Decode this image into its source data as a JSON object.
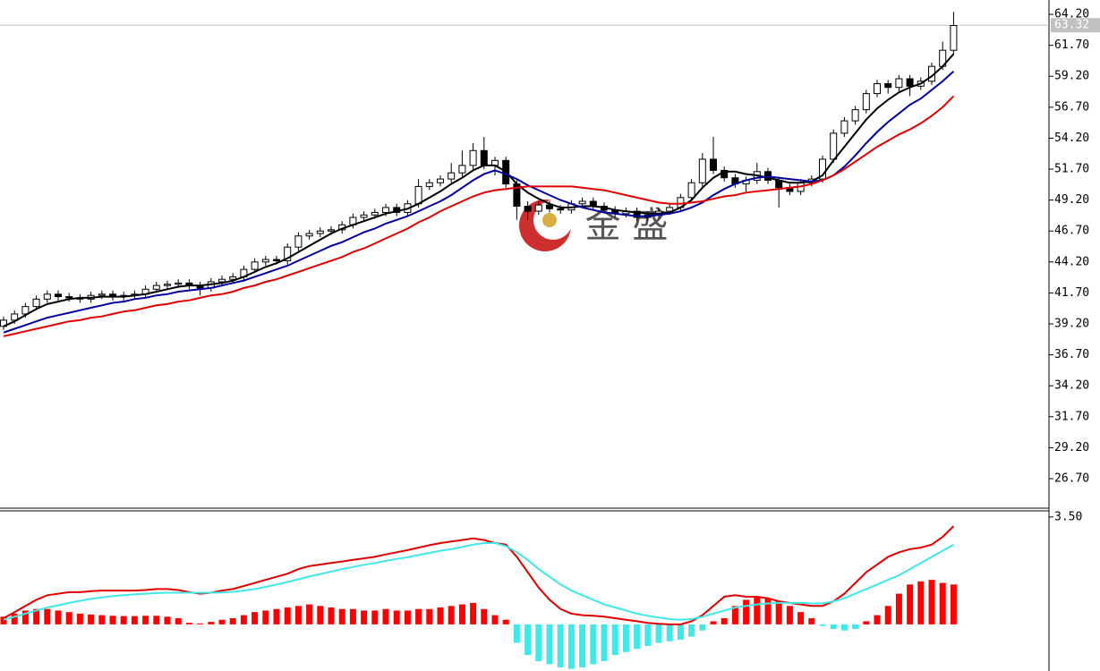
{
  "chart_data": [
    {
      "type": "candlestick",
      "ylim": [
        24.17,
        65.36
      ],
      "yticks": [
        {
          "value": 64.2,
          "label": "64.20"
        },
        {
          "value": 61.7,
          "label": "61.70"
        },
        {
          "value": 59.2,
          "label": "59.20"
        },
        {
          "value": 56.7,
          "label": "56.70"
        },
        {
          "value": 54.2,
          "label": "54.20"
        },
        {
          "value": 51.7,
          "label": "51.70"
        },
        {
          "value": 49.2,
          "label": "49.20"
        },
        {
          "value": 46.7,
          "label": "46.70"
        },
        {
          "value": 44.2,
          "label": "44.20"
        },
        {
          "value": 41.7,
          "label": "41.70"
        },
        {
          "value": 39.2,
          "label": "39.20"
        },
        {
          "value": 36.7,
          "label": "36.70"
        },
        {
          "value": 34.2,
          "label": "34.20"
        },
        {
          "value": 31.7,
          "label": "31.70"
        },
        {
          "value": 29.2,
          "label": "29.20"
        },
        {
          "value": 26.7,
          "label": "26.70"
        }
      ],
      "last_price": 63.32,
      "watermark": "金 盛",
      "up_color": "#ffffff",
      "down_color": "#000000",
      "candles": [
        [
          39.0,
          39.8,
          38.7,
          39.5
        ],
        [
          39.5,
          40.3,
          39.2,
          40.0
        ],
        [
          40.0,
          40.9,
          39.7,
          40.6
        ],
        [
          40.6,
          41.5,
          40.3,
          41.2
        ],
        [
          41.2,
          41.9,
          40.9,
          41.6
        ],
        [
          41.6,
          41.9,
          41.1,
          41.4
        ],
        [
          41.4,
          41.7,
          41.0,
          41.3
        ],
        [
          41.3,
          41.6,
          40.9,
          41.2
        ],
        [
          41.2,
          41.8,
          40.9,
          41.5
        ],
        [
          41.5,
          41.9,
          41.2,
          41.6
        ],
        [
          41.6,
          41.9,
          41.1,
          41.4
        ],
        [
          41.4,
          41.8,
          41.1,
          41.5
        ],
        [
          41.5,
          41.9,
          41.2,
          41.6
        ],
        [
          41.6,
          42.3,
          41.3,
          42.0
        ],
        [
          42.0,
          42.6,
          41.7,
          42.3
        ],
        [
          42.3,
          42.7,
          42.0,
          42.4
        ],
        [
          42.4,
          42.8,
          42.1,
          42.5
        ],
        [
          42.5,
          42.8,
          42.0,
          42.3
        ],
        [
          42.3,
          42.6,
          41.5,
          42.1
        ],
        [
          42.1,
          42.9,
          41.8,
          42.6
        ],
        [
          42.6,
          43.1,
          42.3,
          42.8
        ],
        [
          42.8,
          43.3,
          42.5,
          43.0
        ],
        [
          43.0,
          43.9,
          42.7,
          43.6
        ],
        [
          43.6,
          44.5,
          43.3,
          44.2
        ],
        [
          44.2,
          44.7,
          43.9,
          44.4
        ],
        [
          44.4,
          44.7,
          44.0,
          44.3
        ],
        [
          44.3,
          45.7,
          44.0,
          45.4
        ],
        [
          45.4,
          46.6,
          45.1,
          46.3
        ],
        [
          46.3,
          46.8,
          46.0,
          46.5
        ],
        [
          46.5,
          47.0,
          46.2,
          46.7
        ],
        [
          46.7,
          47.1,
          46.4,
          46.8
        ],
        [
          46.8,
          47.5,
          46.5,
          47.2
        ],
        [
          47.2,
          48.1,
          46.9,
          47.8
        ],
        [
          47.8,
          48.3,
          47.5,
          48.0
        ],
        [
          48.0,
          48.5,
          47.7,
          48.2
        ],
        [
          48.2,
          48.9,
          47.9,
          48.6
        ],
        [
          48.6,
          48.9,
          47.9,
          48.2
        ],
        [
          48.2,
          49.2,
          47.9,
          48.9
        ],
        [
          48.9,
          50.9,
          48.6,
          50.3
        ],
        [
          50.3,
          50.9,
          50.0,
          50.6
        ],
        [
          50.6,
          51.2,
          50.3,
          50.9
        ],
        [
          50.9,
          52.2,
          50.6,
          51.4
        ],
        [
          51.4,
          53.2,
          51.1,
          52.0
        ],
        [
          52.0,
          53.8,
          51.7,
          53.2
        ],
        [
          53.2,
          54.3,
          51.7,
          52.0
        ],
        [
          52.0,
          52.7,
          51.2,
          52.4
        ],
        [
          52.4,
          52.7,
          50.2,
          50.5
        ],
        [
          50.5,
          50.8,
          47.6,
          48.7
        ],
        [
          48.7,
          49.1,
          47.6,
          48.3
        ],
        [
          48.3,
          49.1,
          48.0,
          48.8
        ],
        [
          48.8,
          49.1,
          48.2,
          48.5
        ],
        [
          48.5,
          48.8,
          48.1,
          48.4
        ],
        [
          48.4,
          49.2,
          48.1,
          48.9
        ],
        [
          48.9,
          49.4,
          48.6,
          49.1
        ],
        [
          49.1,
          49.4,
          48.4,
          48.7
        ],
        [
          48.7,
          49.0,
          48.1,
          48.4
        ],
        [
          48.4,
          48.7,
          47.8,
          48.1
        ],
        [
          48.1,
          48.6,
          47.8,
          48.3
        ],
        [
          48.3,
          48.6,
          47.5,
          47.8
        ],
        [
          47.8,
          48.3,
          47.5,
          48.0
        ],
        [
          48.0,
          48.6,
          47.7,
          48.3
        ],
        [
          48.3,
          48.9,
          48.0,
          48.6
        ],
        [
          48.6,
          49.7,
          48.3,
          49.4
        ],
        [
          49.4,
          50.9,
          49.1,
          50.6
        ],
        [
          50.6,
          53.0,
          50.3,
          52.5
        ],
        [
          52.5,
          54.3,
          51.3,
          51.6
        ],
        [
          51.6,
          51.9,
          50.7,
          51.0
        ],
        [
          51.0,
          51.3,
          50.2,
          50.5
        ],
        [
          50.5,
          51.1,
          49.8,
          50.8
        ],
        [
          50.8,
          52.2,
          50.5,
          51.5
        ],
        [
          51.5,
          51.8,
          50.5,
          50.8
        ],
        [
          50.8,
          51.1,
          48.6,
          50.2
        ],
        [
          50.2,
          50.5,
          49.6,
          49.9
        ],
        [
          49.9,
          50.9,
          49.6,
          50.6
        ],
        [
          50.6,
          51.2,
          50.3,
          50.9
        ],
        [
          50.9,
          52.8,
          50.6,
          52.5
        ],
        [
          52.5,
          54.9,
          52.2,
          54.6
        ],
        [
          54.6,
          55.9,
          54.3,
          55.6
        ],
        [
          55.6,
          56.8,
          55.3,
          56.5
        ],
        [
          56.5,
          58.1,
          56.2,
          57.8
        ],
        [
          57.8,
          58.9,
          57.5,
          58.6
        ],
        [
          58.6,
          58.9,
          57.8,
          58.3
        ],
        [
          58.3,
          59.3,
          58.0,
          59.0
        ],
        [
          59.0,
          59.3,
          57.6,
          58.4
        ],
        [
          58.4,
          59.1,
          58.1,
          58.8
        ],
        [
          58.8,
          60.3,
          58.5,
          60.0
        ],
        [
          60.0,
          62.0,
          59.7,
          61.3
        ],
        [
          61.3,
          64.4,
          61.0,
          63.3
        ]
      ],
      "series": [
        {
          "color": "#000000",
          "values": [
            39.0,
            39.4,
            39.9,
            40.4,
            40.8,
            41.0,
            41.2,
            41.3,
            41.3,
            41.4,
            41.4,
            41.4,
            41.5,
            41.6,
            41.8,
            42.0,
            42.2,
            42.3,
            42.3,
            42.4,
            42.5,
            42.7,
            43.0,
            43.4,
            43.8,
            44.1,
            44.5,
            45.0,
            45.5,
            46.0,
            46.5,
            46.9,
            47.2,
            47.5,
            47.8,
            48.1,
            48.3,
            48.5,
            48.9,
            49.4,
            49.9,
            50.5,
            51.0,
            51.6,
            52.0,
            52.0,
            51.5,
            50.5,
            49.8,
            49.3,
            48.9,
            48.6,
            48.6,
            48.7,
            48.7,
            48.6,
            48.4,
            48.3,
            48.2,
            48.1,
            48.1,
            48.2,
            48.6,
            49.2,
            50.2,
            51.0,
            51.5,
            51.5,
            51.3,
            51.2,
            51.0,
            50.8,
            50.6,
            50.6,
            50.7,
            51.2,
            52.4,
            53.5,
            54.6,
            55.7,
            56.6,
            57.3,
            57.9,
            58.3,
            58.6,
            59.2,
            60.0,
            61.0
          ]
        },
        {
          "color": "#0000a0",
          "values": [
            38.5,
            38.8,
            39.1,
            39.4,
            39.7,
            39.9,
            40.1,
            40.3,
            40.5,
            40.7,
            40.9,
            41.0,
            41.2,
            41.3,
            41.5,
            41.6,
            41.8,
            41.9,
            42.0,
            42.1,
            42.3,
            42.5,
            42.7,
            43.0,
            43.3,
            43.6,
            43.9,
            44.3,
            44.7,
            45.1,
            45.5,
            45.8,
            46.2,
            46.6,
            46.9,
            47.3,
            47.6,
            47.9,
            48.3,
            48.7,
            49.1,
            49.6,
            50.2,
            50.8,
            51.3,
            51.6,
            51.3,
            50.9,
            50.4,
            50.0,
            49.6,
            49.2,
            48.9,
            48.6,
            48.4,
            48.2,
            48.1,
            48.0,
            47.9,
            47.9,
            48.0,
            48.1,
            48.3,
            48.6,
            49.0,
            49.6,
            50.1,
            50.5,
            50.8,
            51.0,
            51.1,
            51.0,
            50.9,
            50.8,
            50.7,
            50.8,
            51.2,
            51.9,
            52.8,
            53.8,
            54.7,
            55.5,
            56.2,
            56.9,
            57.4,
            58.1,
            58.8,
            59.6
          ]
        },
        {
          "color": "#e00000",
          "values": [
            38.2,
            38.4,
            38.6,
            38.8,
            39.0,
            39.2,
            39.4,
            39.5,
            39.7,
            39.8,
            40.0,
            40.2,
            40.3,
            40.5,
            40.7,
            40.8,
            41.0,
            41.1,
            41.3,
            41.5,
            41.6,
            41.8,
            42.1,
            42.3,
            42.6,
            42.8,
            43.1,
            43.4,
            43.7,
            44.0,
            44.3,
            44.6,
            45.0,
            45.3,
            45.7,
            46.1,
            46.5,
            46.9,
            47.4,
            47.8,
            48.3,
            48.7,
            49.1,
            49.5,
            49.8,
            50.0,
            50.1,
            50.2,
            50.3,
            50.3,
            50.3,
            50.3,
            50.3,
            50.2,
            50.1,
            50.0,
            49.8,
            49.6,
            49.4,
            49.2,
            49.0,
            48.9,
            48.9,
            49.0,
            49.1,
            49.3,
            49.5,
            49.6,
            49.8,
            49.9,
            50.0,
            50.1,
            50.2,
            50.3,
            50.5,
            50.8,
            51.2,
            51.7,
            52.3,
            52.9,
            53.5,
            54.0,
            54.5,
            54.9,
            55.4,
            56.0,
            56.7,
            57.6
          ]
        }
      ]
    },
    {
      "type": "macd",
      "ylim": [
        -1.52,
        3.67
      ],
      "yticks": [
        {
          "value": 3.5,
          "label": "3.50"
        }
      ],
      "histogram": {
        "color": "#ff0000",
        "negative_color": "#40e8e8",
        "values": [
          0.25,
          0.35,
          0.45,
          0.5,
          0.5,
          0.45,
          0.4,
          0.35,
          0.32,
          0.3,
          0.28,
          0.27,
          0.27,
          0.28,
          0.28,
          0.25,
          0.2,
          0.05,
          0.03,
          0.08,
          0.15,
          0.2,
          0.3,
          0.4,
          0.45,
          0.5,
          0.55,
          0.6,
          0.65,
          0.6,
          0.55,
          0.5,
          0.5,
          0.45,
          0.45,
          0.5,
          0.45,
          0.45,
          0.5,
          0.5,
          0.55,
          0.6,
          0.65,
          0.7,
          0.5,
          0.3,
          0.15,
          -0.6,
          -1.0,
          -1.2,
          -1.3,
          -1.4,
          -1.45,
          -1.4,
          -1.3,
          -1.2,
          -1.0,
          -0.9,
          -0.8,
          -0.7,
          -0.6,
          -0.55,
          -0.5,
          -0.4,
          -0.2,
          0.1,
          0.2,
          0.6,
          0.8,
          0.9,
          0.85,
          0.75,
          0.6,
          0.4,
          0.2,
          -0.05,
          -0.15,
          -0.2,
          -0.15,
          0.1,
          0.3,
          0.6,
          1.0,
          1.3,
          1.4,
          1.45,
          1.35,
          1.3
        ]
      },
      "series": [
        {
          "color": "#e00000",
          "values": [
            0.2,
            0.4,
            0.6,
            0.8,
            0.95,
            1.0,
            1.05,
            1.05,
            1.08,
            1.1,
            1.1,
            1.1,
            1.1,
            1.12,
            1.15,
            1.15,
            1.12,
            1.05,
            1.0,
            1.03,
            1.1,
            1.15,
            1.25,
            1.35,
            1.45,
            1.55,
            1.65,
            1.8,
            1.9,
            1.95,
            2.0,
            2.05,
            2.1,
            2.15,
            2.2,
            2.28,
            2.35,
            2.42,
            2.5,
            2.58,
            2.65,
            2.7,
            2.75,
            2.8,
            2.75,
            2.65,
            2.6,
            2.2,
            1.7,
            1.2,
            0.8,
            0.5,
            0.35,
            0.3,
            0.28,
            0.25,
            0.2,
            0.15,
            0.1,
            0.05,
            0.02,
            0.0,
            0.0,
            0.1,
            0.3,
            0.6,
            0.9,
            0.95,
            0.9,
            0.9,
            0.85,
            0.75,
            0.7,
            0.65,
            0.6,
            0.6,
            0.75,
            1.0,
            1.35,
            1.7,
            1.95,
            2.2,
            2.35,
            2.45,
            2.5,
            2.6,
            2.85,
            3.2
          ]
        },
        {
          "color": "#40e8e8",
          "values": [
            0.15,
            0.25,
            0.35,
            0.45,
            0.55,
            0.62,
            0.7,
            0.77,
            0.83,
            0.88,
            0.92,
            0.95,
            0.98,
            1.0,
            1.02,
            1.03,
            1.03,
            1.03,
            1.03,
            1.03,
            1.04,
            1.06,
            1.1,
            1.15,
            1.22,
            1.3,
            1.38,
            1.47,
            1.56,
            1.64,
            1.72,
            1.8,
            1.87,
            1.94,
            2.0,
            2.07,
            2.13,
            2.19,
            2.26,
            2.33,
            2.4,
            2.45,
            2.52,
            2.6,
            2.65,
            2.65,
            2.55,
            2.35,
            2.1,
            1.8,
            1.55,
            1.3,
            1.1,
            0.95,
            0.8,
            0.65,
            0.55,
            0.45,
            0.35,
            0.28,
            0.22,
            0.17,
            0.15,
            0.17,
            0.25,
            0.35,
            0.45,
            0.55,
            0.6,
            0.65,
            0.68,
            0.7,
            0.7,
            0.7,
            0.68,
            0.68,
            0.75,
            0.85,
            1.0,
            1.15,
            1.3,
            1.45,
            1.6,
            1.8,
            2.0,
            2.2,
            2.4,
            2.6
          ]
        }
      ]
    }
  ]
}
